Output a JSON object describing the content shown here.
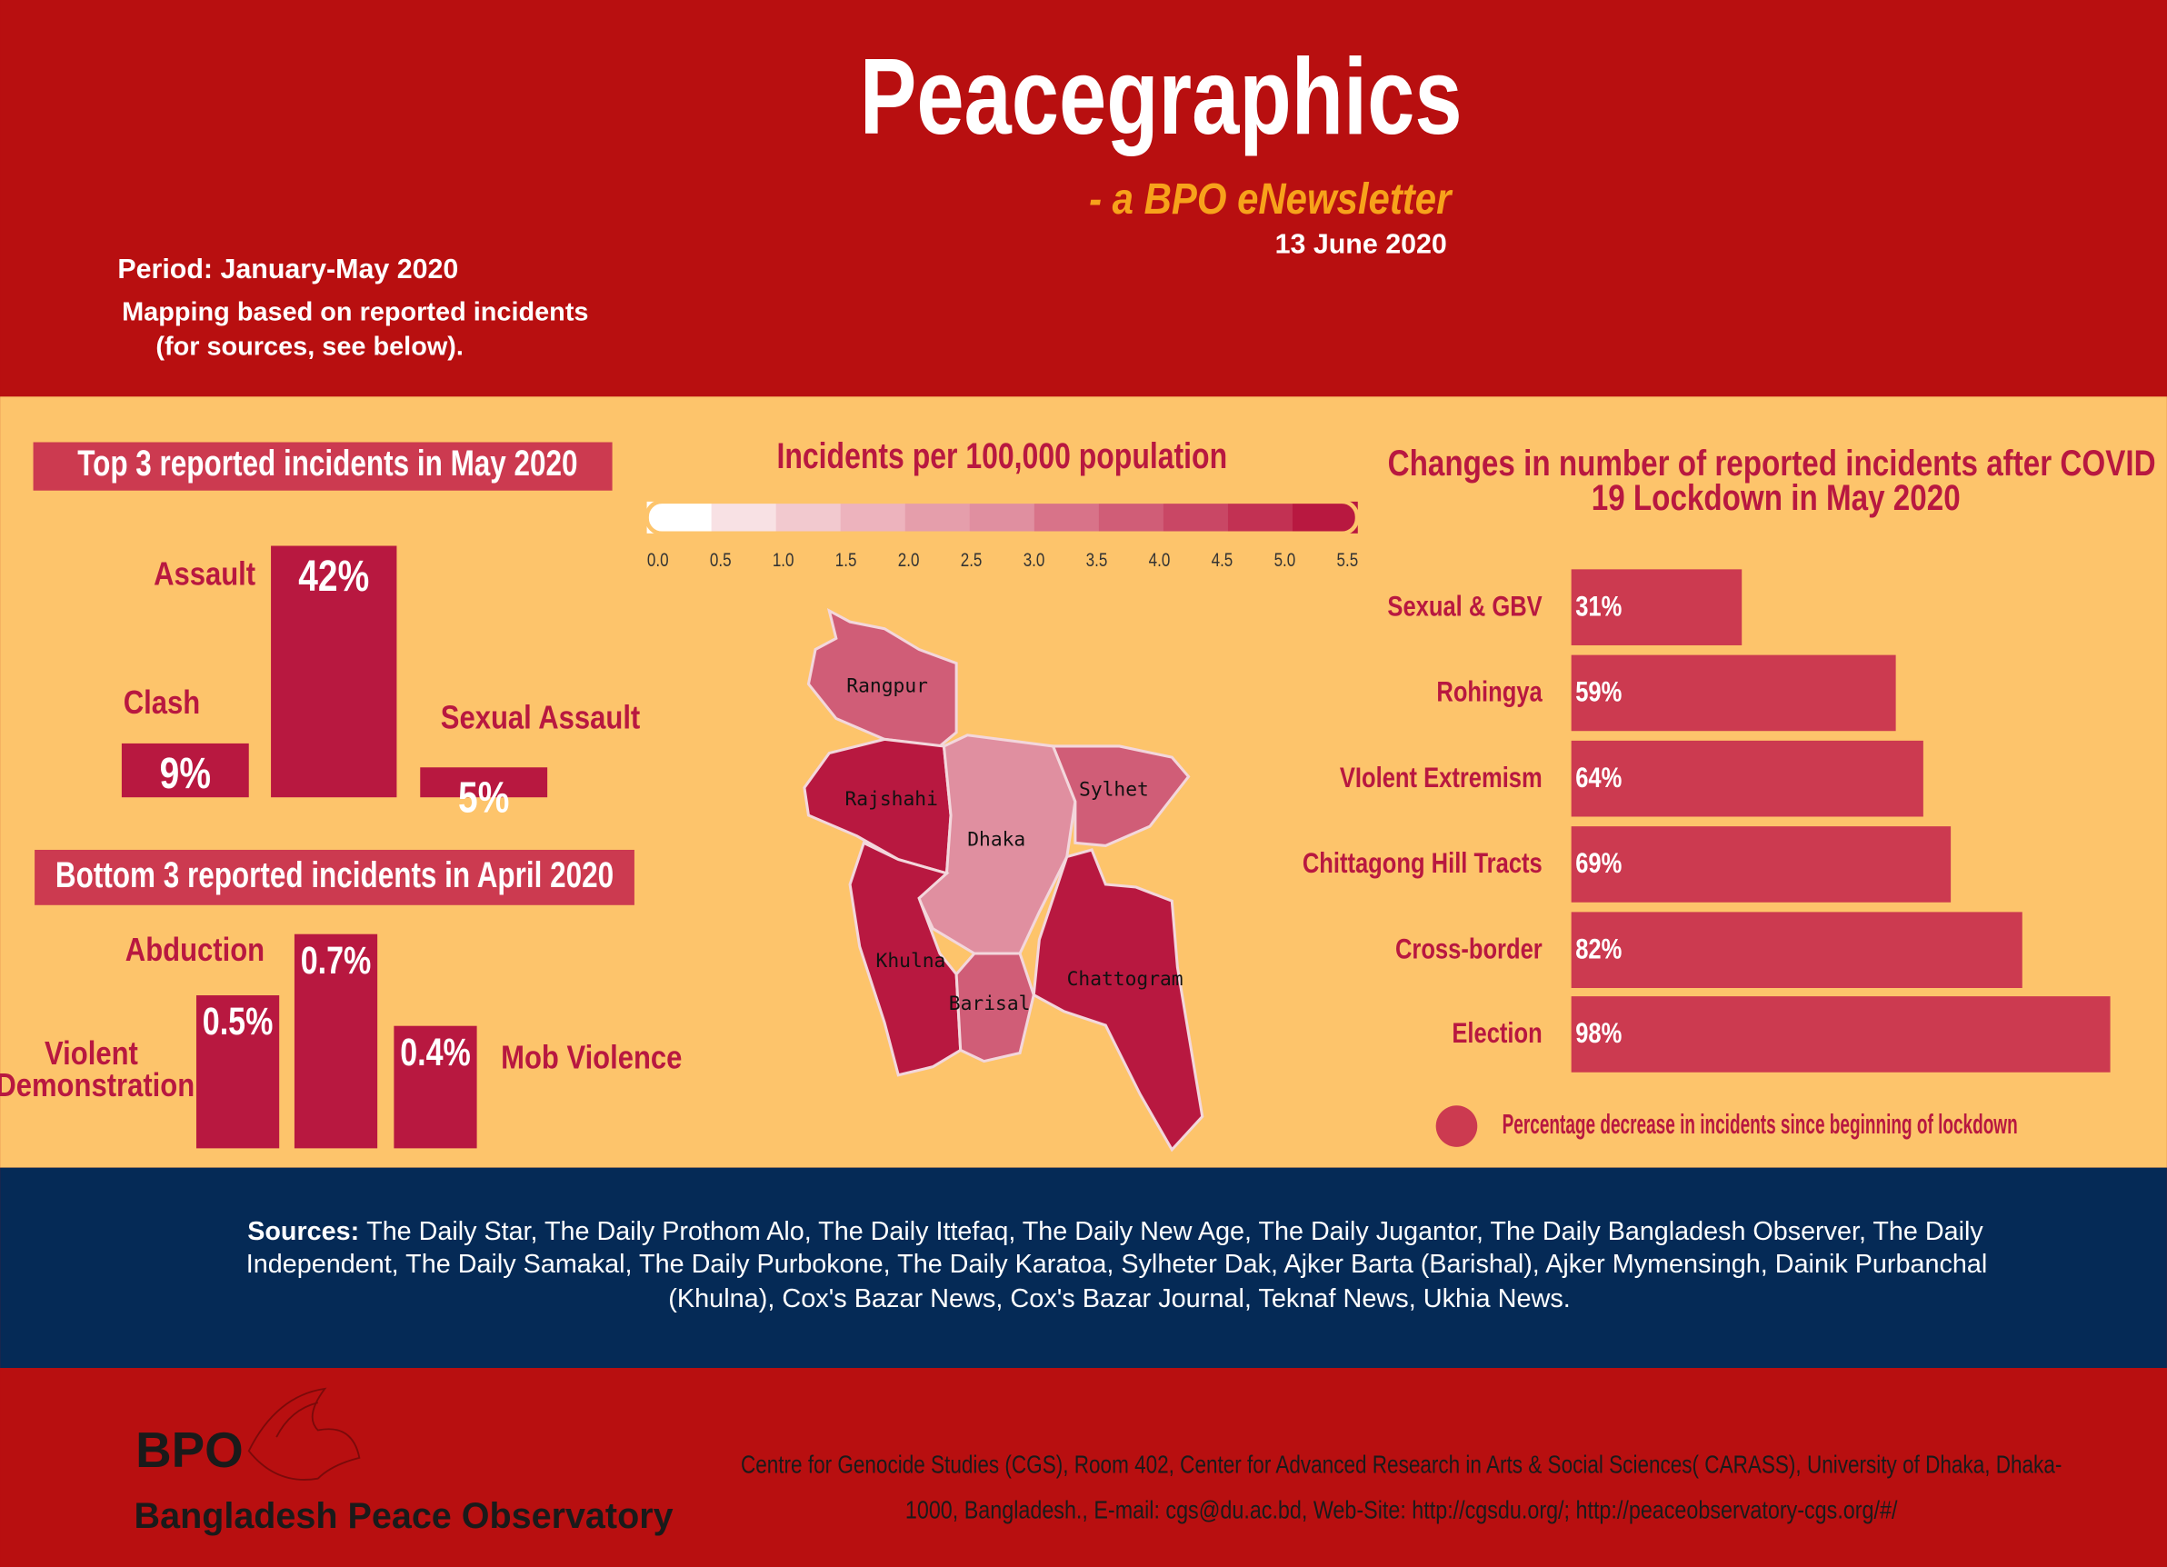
{
  "header": {
    "title": "Peacegraphics",
    "subtitle": "- a BPO eNewsletter",
    "date": "13 June 2020",
    "period": "Period: January-May 2020",
    "note": [
      "Mapping based on reported incidents",
      "(for sources, see below)."
    ]
  },
  "chart_data": [
    {
      "type": "bar",
      "title": "Top 3 reported incidents in May 2020",
      "categories": [
        "Clash",
        "Assault",
        "Sexual Assault"
      ],
      "values": [
        9,
        42,
        5
      ],
      "value_labels": [
        "9%",
        "42%",
        "5%"
      ],
      "color": "#b81840"
    },
    {
      "type": "bar",
      "title": "Bottom 3 reported incidents in April 2020",
      "categories": [
        "Violent Demonstration",
        "Abduction",
        "Mob Violence"
      ],
      "values": [
        0.5,
        0.7,
        0.4
      ],
      "value_labels": [
        "0.5%",
        "0.7%",
        "0.4%"
      ],
      "color": "#b81840"
    },
    {
      "type": "hbar",
      "title": "Changes in number of reported incidents after COVID 19 Lockdown in May 2020",
      "categories": [
        "Sexual & GBV",
        "Rohingya",
        "VIolent Extremism",
        "Chittagong Hill Tracts",
        "Cross-border",
        "Election"
      ],
      "values": [
        31,
        59,
        64,
        69,
        82,
        98
      ],
      "value_labels": [
        "31%",
        "59%",
        "64%",
        "69%",
        "82%",
        "98%"
      ],
      "color": "#cc3a50",
      "legend": "Percentage decrease in incidents since beginning of lockdown"
    },
    {
      "type": "choropleth",
      "title": "Incidents per 100,000 population",
      "ticks": [
        {
          "value": 0,
          "label": "0.0"
        },
        0.5,
        {
          "value": 1,
          "label": "1.0"
        },
        1.5,
        {
          "value": 2,
          "label": "2.0"
        },
        2.5,
        {
          "value": 3,
          "label": "3.0"
        },
        3.5,
        {
          "value": 4,
          "label": "4.0"
        },
        4.5,
        {
          "value": 5,
          "label": "5.0"
        },
        5.5
      ],
      "colors": [
        "#ffffff",
        "#f8e1e4",
        "#f2c9cf",
        "#edb3bd",
        "#e59eab",
        "#e08fa0",
        "#d87389",
        "#d05d77",
        "#c94765",
        "#c23153",
        "#b81840"
      ],
      "regions": [
        "Rangpur",
        "Rajshahi",
        "Dhaka",
        "Sylhet",
        "Khulna",
        "Barisal",
        "Chattogram"
      ],
      "values": [
        3.5,
        5.0,
        2.5,
        3.5,
        5.0,
        3.5,
        5.0
      ]
    }
  ],
  "sources": {
    "label": "Sources:",
    "lines": [
      "The Daily Star, The Daily Prothom Alo, The Daily Ittefaq, The Daily New Age, The Daily Jugantor, The Daily Bangladesh Observer, The Daily",
      "Independent, The Daily Samakal, The Daily Purbokone, The Daily Karatoa, Sylheter Dak, Ajker Barta (Barishal), Ajker Mymensingh, Dainik Purbanchal",
      "(Khulna), Cox's Bazar News, Cox's Bazar Journal, Teknaf News, Ukhia News."
    ]
  },
  "footer": {
    "logo": "BPO",
    "org": "Bangladesh Peace Observatory",
    "address": [
      "Centre for Genocide Studies (CGS), Room 402, Center for Advanced Research in Arts & Social Sciences( CARASS), University of Dhaka, Dhaka-",
      "1000, Bangladesh., E-mail: cgs@du.ac.bd, Web-Site: http://cgsdu.org/; http://peaceobservatory-cgs.org/#/"
    ]
  }
}
